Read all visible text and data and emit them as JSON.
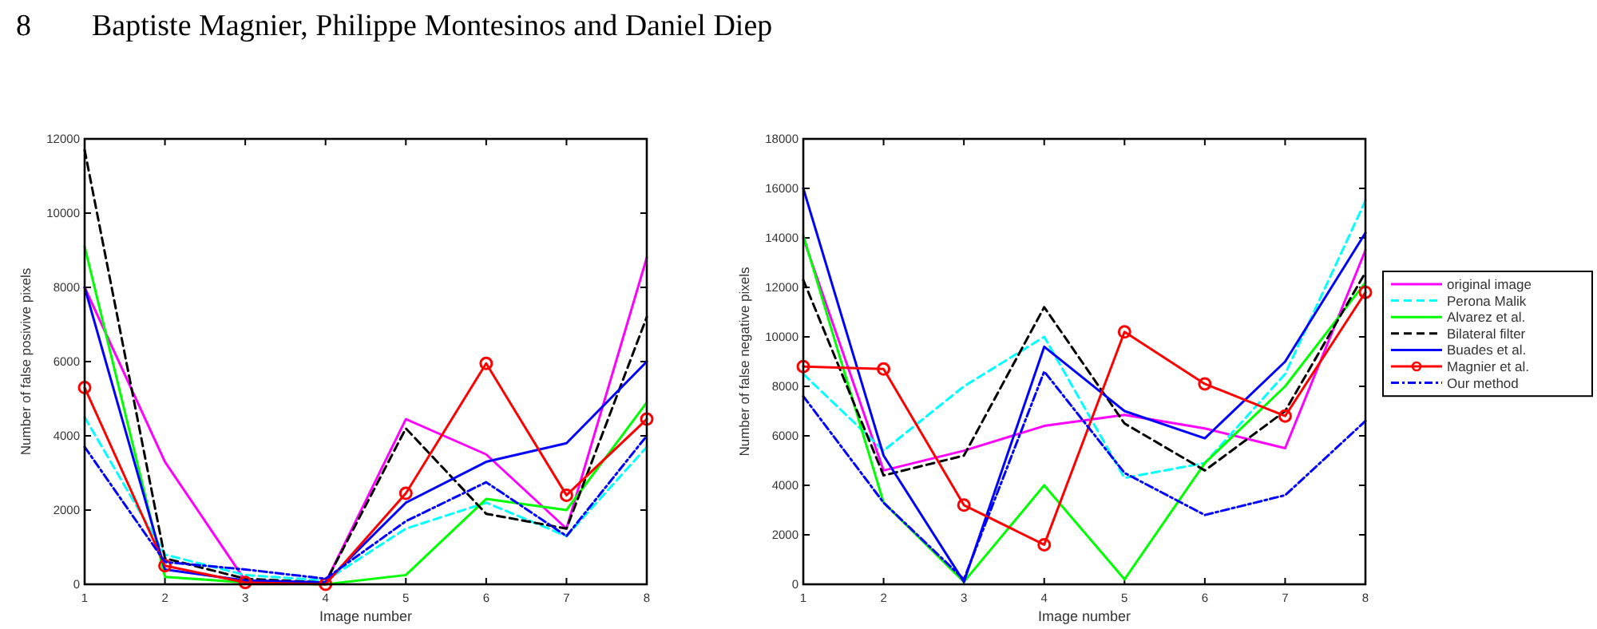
{
  "chart_data": [
    {
      "type": "line",
      "xlabel": "Image number",
      "ylabel": "Number of false posivive pixels",
      "annotations": [
        "8        Baptiste Magnier, Philippe Montesinos and Daniel Diep"
      ],
      "x": [
        1,
        2,
        3,
        4,
        5,
        6,
        7,
        8
      ],
      "xlim": [
        1,
        8
      ],
      "xticks": [
        1,
        2,
        3,
        4,
        5,
        6,
        7,
        8
      ],
      "ylim": [
        0,
        12000
      ],
      "yticks": [
        0,
        2000,
        4000,
        6000,
        8000,
        10000,
        12000
      ],
      "grid": false,
      "legend": false,
      "series": [
        {
          "color": "#ff00ff",
          "line_style": "solid",
          "marker": "none",
          "values": [
            8000,
            3300,
            100,
            50,
            4450,
            3500,
            1500,
            8800
          ]
        },
        {
          "color": "#00ffff",
          "line_style": "dashed",
          "marker": "none",
          "values": [
            4500,
            800,
            250,
            100,
            1500,
            2200,
            1300,
            3700
          ]
        },
        {
          "color": "#00ff00",
          "line_style": "solid",
          "marker": "none",
          "values": [
            9100,
            200,
            50,
            0,
            250,
            2300,
            2000,
            4900
          ]
        },
        {
          "color": "#000000",
          "line_style": "dashed",
          "marker": "none",
          "values": [
            11700,
            700,
            150,
            50,
            4200,
            1900,
            1500,
            7200
          ]
        },
        {
          "color": "#0000ff",
          "line_style": "solid",
          "marker": "none",
          "values": [
            8000,
            400,
            100,
            50,
            2200,
            3300,
            3800,
            6000
          ]
        },
        {
          "color": "#ff0000",
          "line_style": "solid",
          "marker": "circle",
          "values": [
            5300,
            500,
            50,
            0,
            2450,
            5950,
            2400,
            4450
          ]
        },
        {
          "color": "#0000ff",
          "line_style": "dashdot",
          "marker": "none",
          "values": [
            3700,
            600,
            400,
            150,
            1700,
            2750,
            1300,
            4000
          ]
        }
      ]
    },
    {
      "type": "line",
      "xlabel": "Image number",
      "ylabel": "Number of false negative pixels",
      "x": [
        1,
        2,
        3,
        4,
        5,
        6,
        7,
        8
      ],
      "xlim": [
        1,
        8
      ],
      "xticks": [
        1,
        2,
        3,
        4,
        5,
        6,
        7,
        8
      ],
      "ylim": [
        0,
        18000
      ],
      "yticks": [
        0,
        2000,
        4000,
        6000,
        8000,
        10000,
        12000,
        14000,
        16000,
        18000
      ],
      "grid": false,
      "legend": "right",
      "series": [
        {
          "name": "original image",
          "color": "#ff00ff",
          "line_style": "solid",
          "marker": "none",
          "values": [
            14000,
            4600,
            5400,
            6400,
            6850,
            6300,
            5500,
            13500
          ]
        },
        {
          "name": "Perona Malik",
          "color": "#00ffff",
          "line_style": "dashed",
          "marker": "none",
          "values": [
            8500,
            5400,
            8000,
            10000,
            4300,
            4900,
            8500,
            15500
          ]
        },
        {
          "name": "Alvarez et al.",
          "color": "#00ff00",
          "line_style": "solid",
          "marker": "none",
          "values": [
            14100,
            3300,
            100,
            4000,
            200,
            4900,
            8000,
            12200
          ]
        },
        {
          "name": "Bilateral filter",
          "color": "#000000",
          "line_style": "dashed",
          "marker": "none",
          "values": [
            12300,
            4400,
            5200,
            11200,
            6500,
            4600,
            7000,
            12600
          ]
        },
        {
          "name": "Buades et al.",
          "color": "#0000ff",
          "line_style": "solid",
          "marker": "none",
          "values": [
            16000,
            5200,
            100,
            9600,
            7000,
            5900,
            9000,
            14200
          ]
        },
        {
          "name": "Magnier et al.",
          "color": "#ff0000",
          "line_style": "solid",
          "marker": "circle",
          "values": [
            8800,
            8700,
            3200,
            1600,
            10200,
            8100,
            6800,
            11800
          ]
        },
        {
          "name": "Our method",
          "color": "#0000ff",
          "line_style": "dashdot",
          "marker": "none",
          "values": [
            7600,
            3300,
            200,
            8600,
            4500,
            2800,
            3600,
            6600
          ]
        }
      ]
    }
  ]
}
